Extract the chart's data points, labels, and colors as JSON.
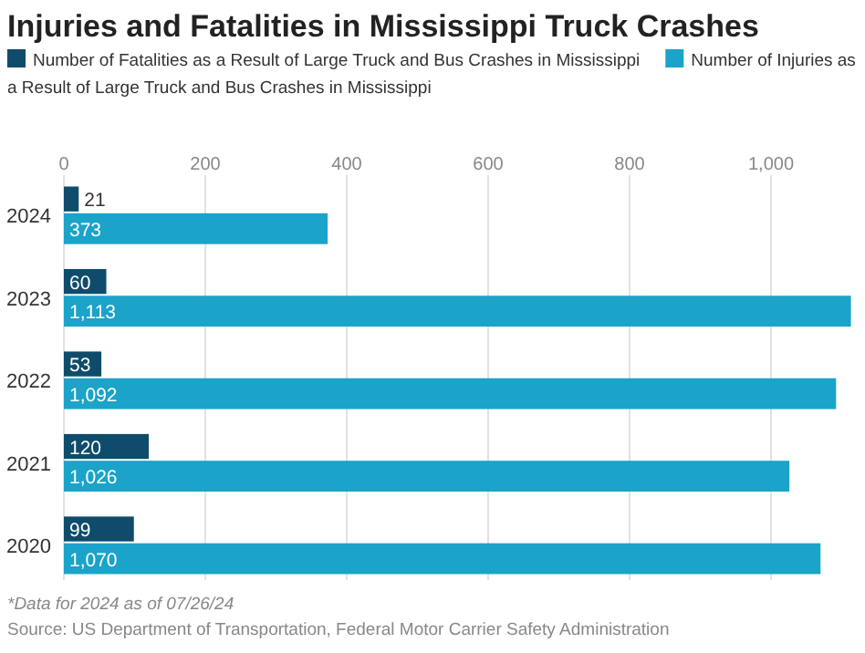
{
  "chart_data": {
    "type": "bar",
    "orientation": "horizontal",
    "title": "Injuries and Fatalities in Mississippi Truck Crashes",
    "categories": [
      "2024",
      "2023",
      "2022",
      "2021",
      "2020"
    ],
    "series": [
      {
        "name": "Number of Fatalities as a Result of Large Truck and Bus Crashes in Mississippi",
        "color": "#0f4c6b",
        "values": [
          21,
          60,
          53,
          120,
          99
        ],
        "value_labels": [
          "21",
          "60",
          "53",
          "120",
          "99"
        ]
      },
      {
        "name": "Number of Injuries as a Result of Large Truck and Bus Crashes in Mississippi",
        "color": "#1ba3c9",
        "values": [
          373,
          1113,
          1092,
          1026,
          1070
        ],
        "value_labels": [
          "373",
          "1,113",
          "1,092",
          "1,026",
          "1,070"
        ]
      }
    ],
    "xlim": [
      0,
      1120
    ],
    "xticks": [
      0,
      200,
      400,
      600,
      800,
      {
        "value": 1000,
        "label": "1,000"
      }
    ],
    "grid": "x",
    "legend": "top",
    "annotations": [
      "*Data for 2024 as of 07/26/24",
      "Source: US Department of Transportation, Federal Motor Carrier Safety Administration"
    ]
  }
}
